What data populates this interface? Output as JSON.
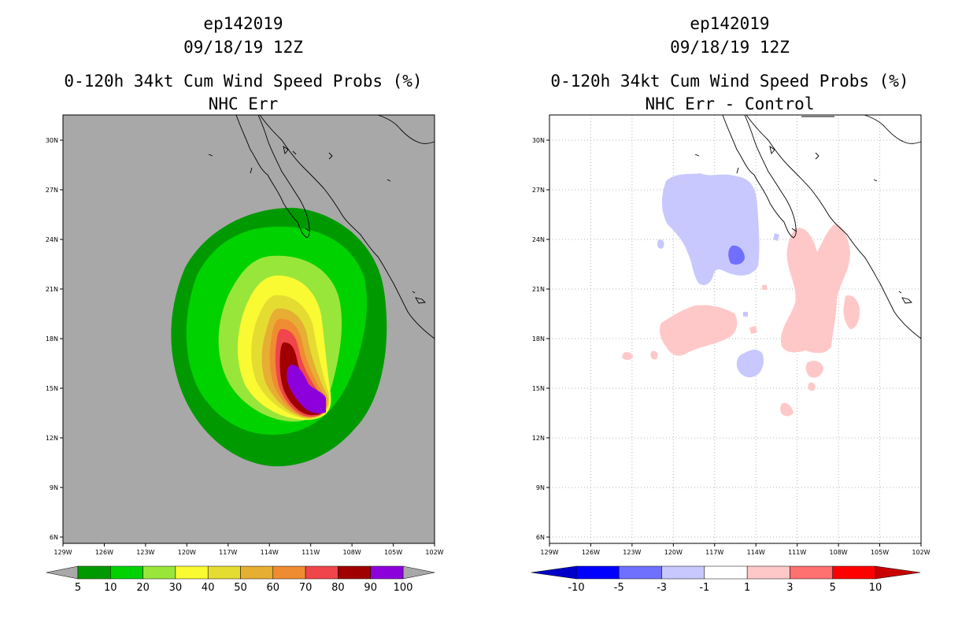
{
  "left_panel": {
    "title_line1": "ep142019",
    "title_line2": "09/18/19 12Z",
    "title_line3": "0-120h 34kt Cum Wind Speed Probs (%)",
    "title_line4": "NHC Err",
    "colorbar": {
      "colors": [
        "#009a00",
        "#00d200",
        "#99e63a",
        "#fafa32",
        "#e5dc32",
        "#e6ae32",
        "#ef8c32",
        "#f0464b",
        "#a00000",
        "#8c00dc"
      ],
      "labels": [
        "5",
        "10",
        "20",
        "30",
        "40",
        "50",
        "60",
        "70",
        "80",
        "90",
        "100"
      ]
    }
  },
  "right_panel": {
    "title_line1": "ep142019",
    "title_line2": "09/18/19 12Z",
    "title_line3": "0-120h 34kt Cum Wind Speed Probs (%)",
    "title_line4": "NHC Err - Control",
    "colorbar": {
      "colors": [
        "#0000c8",
        "#0000ff",
        "#7070ff",
        "#c8c8ff",
        "#ffffff",
        "#ffc8c8",
        "#ff7070",
        "#ff0000",
        "#c80000"
      ],
      "labels": [
        "-10",
        "-5",
        "-3",
        "-1",
        "1",
        "3",
        "5",
        "10"
      ]
    }
  },
  "axes": {
    "lon_labels": [
      "129W",
      "126W",
      "123W",
      "120W",
      "117W",
      "114W",
      "111W",
      "108W",
      "105W",
      "102W"
    ],
    "lat_labels": [
      "30N",
      "27N",
      "24N",
      "21N",
      "18N",
      "15N",
      "12N",
      "9N",
      "6N"
    ]
  },
  "colors": {
    "map_background_left": "#a8a8a8",
    "map_background_right": "#ffffff",
    "grid": "#b4b4b4"
  }
}
